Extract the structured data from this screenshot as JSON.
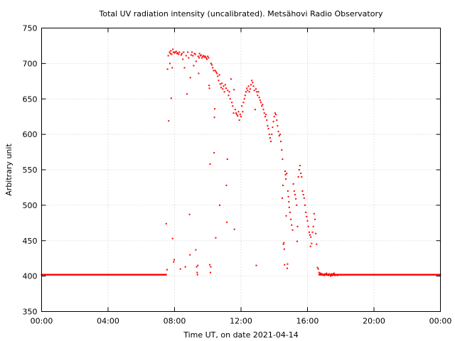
{
  "chart_data": {
    "type": "scatter",
    "title": "Total UV radiation intensity (uncalibrated). Metsähovi Radio Observatory",
    "xlabel": "Time UT, on date 2021-04-14",
    "ylabel": "Arbitrary unit",
    "xlim": [
      0,
      24
    ],
    "ylim": [
      350,
      750
    ],
    "x_ticks": [
      0,
      4,
      8,
      12,
      16,
      20,
      24
    ],
    "x_tick_labels": [
      "00:00",
      "04:00",
      "08:00",
      "12:00",
      "16:00",
      "20:00",
      "00:00"
    ],
    "y_ticks": [
      350,
      400,
      450,
      500,
      550,
      600,
      650,
      700,
      750
    ],
    "y_tick_labels": [
      "350",
      "400",
      "450",
      "500",
      "550",
      "600",
      "650",
      "700",
      "750"
    ],
    "grid": true,
    "color": "#ff0000",
    "baseline": {
      "value": 402,
      "x_ranges": [
        [
          0,
          7.5
        ],
        [
          16.7,
          24
        ]
      ]
    },
    "series": [
      {
        "values": [
          [
            7.5,
            474
          ],
          [
            7.55,
            409
          ],
          [
            7.58,
            692
          ],
          [
            7.62,
            711
          ],
          [
            7.65,
            619
          ],
          [
            7.7,
            716
          ],
          [
            7.72,
            700
          ],
          [
            7.75,
            714
          ],
          [
            7.78,
            718
          ],
          [
            7.8,
            651
          ],
          [
            7.83,
            713
          ],
          [
            7.86,
            694
          ],
          [
            7.88,
            453
          ],
          [
            7.9,
            720
          ],
          [
            7.93,
            716
          ],
          [
            7.95,
            420
          ],
          [
            7.98,
            423
          ],
          [
            8.0,
            715
          ],
          [
            8.05,
            716
          ],
          [
            8.1,
            717
          ],
          [
            8.15,
            714
          ],
          [
            8.2,
            715
          ],
          [
            8.25,
            713
          ],
          [
            8.3,
            716
          ],
          [
            8.35,
            410
          ],
          [
            8.4,
            712
          ],
          [
            8.45,
            714
          ],
          [
            8.5,
            706
          ],
          [
            8.55,
            716
          ],
          [
            8.6,
            694
          ],
          [
            8.65,
            413
          ],
          [
            8.7,
            711
          ],
          [
            8.75,
            657
          ],
          [
            8.8,
            716
          ],
          [
            8.85,
            708
          ],
          [
            8.9,
            487
          ],
          [
            8.93,
            430
          ],
          [
            8.95,
            680
          ],
          [
            9.0,
            712
          ],
          [
            9.05,
            716
          ],
          [
            9.1,
            711
          ],
          [
            9.15,
            697
          ],
          [
            9.2,
            714
          ],
          [
            9.25,
            713
          ],
          [
            9.28,
            437
          ],
          [
            9.3,
            703
          ],
          [
            9.33,
            413
          ],
          [
            9.36,
            405
          ],
          [
            9.38,
            402
          ],
          [
            9.4,
            415
          ],
          [
            9.42,
            710
          ],
          [
            9.45,
            686
          ],
          [
            9.48,
            708
          ],
          [
            9.5,
            714
          ],
          [
            9.55,
            711
          ],
          [
            9.6,
            712
          ],
          [
            9.65,
            708
          ],
          [
            9.7,
            710
          ],
          [
            9.75,
            711
          ],
          [
            9.8,
            709
          ],
          [
            9.85,
            710
          ],
          [
            9.9,
            708
          ],
          [
            9.95,
            706
          ],
          [
            10.0,
            710
          ],
          [
            10.05,
            708
          ],
          [
            10.08,
            669
          ],
          [
            10.1,
            665
          ],
          [
            10.12,
            416
          ],
          [
            10.14,
            558
          ],
          [
            10.16,
            405
          ],
          [
            10.18,
            413
          ],
          [
            10.2,
            700
          ],
          [
            10.25,
            698
          ],
          [
            10.3,
            694
          ],
          [
            10.35,
            690
          ],
          [
            10.38,
            574
          ],
          [
            10.4,
            624
          ],
          [
            10.42,
            636
          ],
          [
            10.45,
            690
          ],
          [
            10.48,
            454
          ],
          [
            10.5,
            688
          ],
          [
            10.55,
            686
          ],
          [
            10.6,
            682
          ],
          [
            10.65,
            676
          ],
          [
            10.7,
            684
          ],
          [
            10.72,
            500
          ],
          [
            10.75,
            671
          ],
          [
            10.8,
            666
          ],
          [
            10.85,
            672
          ],
          [
            10.9,
            664
          ],
          [
            10.95,
            668
          ],
          [
            11.0,
            660
          ],
          [
            11.05,
            670
          ],
          [
            11.1,
            665
          ],
          [
            11.12,
            528
          ],
          [
            11.15,
            476
          ],
          [
            11.18,
            565
          ],
          [
            11.2,
            662
          ],
          [
            11.25,
            655
          ],
          [
            11.3,
            660
          ],
          [
            11.35,
            650
          ],
          [
            11.4,
            678
          ],
          [
            11.45,
            645
          ],
          [
            11.5,
            640
          ],
          [
            11.55,
            630
          ],
          [
            11.58,
            663
          ],
          [
            11.6,
            466
          ],
          [
            11.65,
            635
          ],
          [
            11.7,
            630
          ],
          [
            11.75,
            628
          ],
          [
            11.8,
            626
          ],
          [
            11.85,
            632
          ],
          [
            11.9,
            620
          ],
          [
            11.95,
            628
          ],
          [
            12.0,
            625
          ],
          [
            12.05,
            640
          ],
          [
            12.1,
            632
          ],
          [
            12.15,
            645
          ],
          [
            12.2,
            650
          ],
          [
            12.25,
            655
          ],
          [
            12.3,
            660
          ],
          [
            12.35,
            665
          ],
          [
            12.4,
            662
          ],
          [
            12.45,
            668
          ],
          [
            12.5,
            660
          ],
          [
            12.55,
            664
          ],
          [
            12.6,
            670
          ],
          [
            12.65,
            676
          ],
          [
            12.7,
            673
          ],
          [
            12.75,
            668
          ],
          [
            12.8,
            662
          ],
          [
            12.85,
            635
          ],
          [
            12.9,
            664
          ],
          [
            12.92,
            415
          ],
          [
            12.95,
            660
          ],
          [
            13.0,
            655
          ],
          [
            13.05,
            660
          ],
          [
            13.1,
            652
          ],
          [
            13.15,
            648
          ],
          [
            13.2,
            645
          ],
          [
            13.25,
            640
          ],
          [
            13.3,
            642
          ],
          [
            13.35,
            635
          ],
          [
            13.4,
            630
          ],
          [
            13.45,
            625
          ],
          [
            13.5,
            628
          ],
          [
            13.55,
            620
          ],
          [
            13.6,
            612
          ],
          [
            13.65,
            608
          ],
          [
            13.7,
            600
          ],
          [
            13.75,
            595
          ],
          [
            13.8,
            590
          ],
          [
            13.85,
            600
          ],
          [
            13.9,
            610
          ],
          [
            13.95,
            618
          ],
          [
            14.0,
            625
          ],
          [
            14.05,
            630
          ],
          [
            14.1,
            628
          ],
          [
            14.15,
            620
          ],
          [
            14.2,
            612
          ],
          [
            14.25,
            604
          ],
          [
            14.3,
            598
          ],
          [
            14.35,
            600
          ],
          [
            14.4,
            590
          ],
          [
            14.45,
            578
          ],
          [
            14.48,
            510
          ],
          [
            14.5,
            565
          ],
          [
            14.52,
            528
          ],
          [
            14.55,
            445
          ],
          [
            14.58,
            447
          ],
          [
            14.6,
            438
          ],
          [
            14.62,
            416
          ],
          [
            14.65,
            548
          ],
          [
            14.68,
            543
          ],
          [
            14.7,
            537
          ],
          [
            14.72,
            485
          ],
          [
            14.75,
            545
          ],
          [
            14.78,
            411
          ],
          [
            14.8,
            417
          ],
          [
            14.82,
            520
          ],
          [
            14.85,
            512
          ],
          [
            14.88,
            505
          ],
          [
            14.9,
            497
          ],
          [
            14.95,
            490
          ],
          [
            15.0,
            480
          ],
          [
            15.05,
            472
          ],
          [
            15.1,
            465
          ],
          [
            15.15,
            530
          ],
          [
            15.2,
            520
          ],
          [
            15.25,
            515
          ],
          [
            15.3,
            509
          ],
          [
            15.35,
            500
          ],
          [
            15.38,
            449
          ],
          [
            15.4,
            470
          ],
          [
            15.45,
            540
          ],
          [
            15.5,
            550
          ],
          [
            15.55,
            556
          ],
          [
            15.6,
            545
          ],
          [
            15.65,
            540
          ],
          [
            15.7,
            520
          ],
          [
            15.75,
            515
          ],
          [
            15.8,
            510
          ],
          [
            15.85,
            500
          ],
          [
            15.9,
            490
          ],
          [
            15.95,
            484
          ],
          [
            16.0,
            478
          ],
          [
            16.05,
            470
          ],
          [
            16.1,
            462
          ],
          [
            16.15,
            458
          ],
          [
            16.18,
            442
          ],
          [
            16.2,
            455
          ],
          [
            16.25,
            446
          ],
          [
            16.3,
            462
          ],
          [
            16.35,
            470
          ],
          [
            16.4,
            488
          ],
          [
            16.45,
            480
          ],
          [
            16.5,
            460
          ],
          [
            16.55,
            445
          ],
          [
            16.6,
            412
          ],
          [
            16.65,
            410
          ],
          [
            16.7,
            405
          ],
          [
            16.75,
            403
          ],
          [
            16.8,
            404
          ],
          [
            16.85,
            402
          ],
          [
            16.9,
            403
          ],
          [
            16.95,
            402
          ],
          [
            17.0,
            401
          ],
          [
            17.05,
            403
          ],
          [
            17.1,
            402
          ],
          [
            17.15,
            404
          ],
          [
            17.2,
            402
          ],
          [
            17.25,
            401
          ],
          [
            17.3,
            403
          ],
          [
            17.35,
            402
          ],
          [
            17.4,
            400
          ],
          [
            17.45,
            403
          ],
          [
            17.5,
            401
          ],
          [
            17.55,
            403
          ],
          [
            17.6,
            404
          ],
          [
            17.65,
            401
          ],
          [
            17.7,
            402
          ],
          [
            17.75,
            402
          ],
          [
            17.8,
            401
          ]
        ]
      }
    ]
  }
}
